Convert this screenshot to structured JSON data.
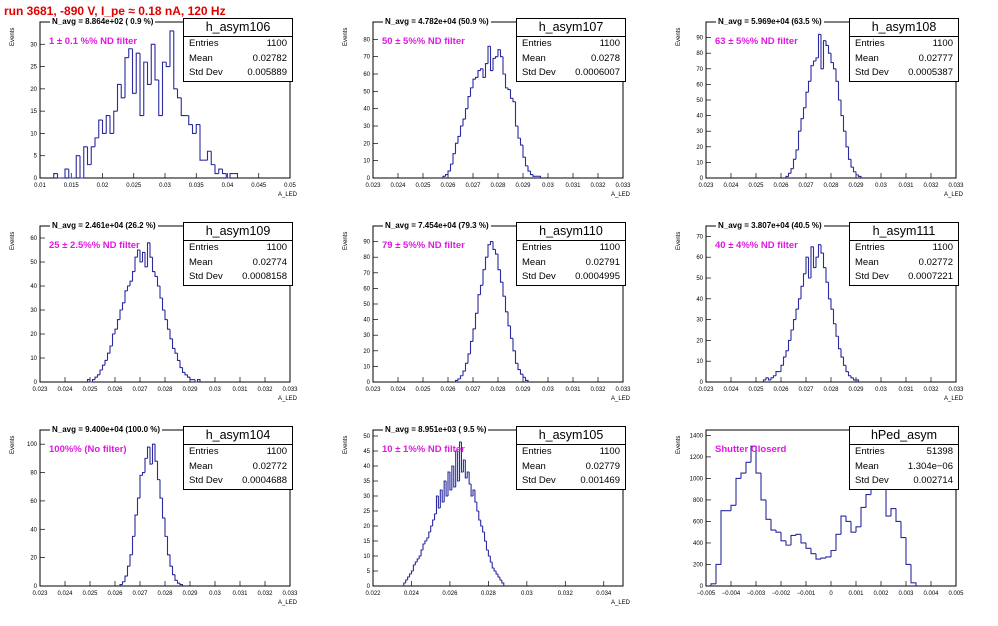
{
  "title": "run 3681,  -890 V, I_pe ≈ 0.18 nA, 120 Hz",
  "chart_data": [
    {
      "type": "histogram",
      "name": "h_asym106",
      "entries": "1100",
      "mean": "0.02782",
      "std_dev": "0.005889",
      "n_avg": "N_avg = 8.864e+02 ( 0.9 %)",
      "filter_label": "1 ± 0.1 %% ND filter",
      "xlabel": "A_LED",
      "ylabel": "Events",
      "xlim": [
        0.01,
        0.05
      ],
      "ylim": [
        0,
        35
      ],
      "xticks": [
        "0.01",
        "0.015",
        "0.02",
        "0.025",
        "0.03",
        "0.035",
        "0.04",
        "0.045",
        "0.05"
      ],
      "yticks": [
        "0",
        "5",
        "10",
        "15",
        "20",
        "25",
        "30"
      ],
      "x_start": 0.0122,
      "bin_width": 0.0006,
      "counts": [
        1,
        0,
        0,
        2,
        0,
        0,
        5,
        0,
        7,
        3,
        7,
        9,
        13,
        10,
        14,
        10,
        15,
        21,
        18,
        27,
        29,
        19,
        28,
        14,
        26,
        21,
        30,
        22,
        14,
        26,
        25,
        33,
        20,
        18,
        14,
        14,
        12,
        10,
        12,
        4,
        4,
        6,
        3,
        1,
        2,
        1,
        0,
        1,
        1
      ]
    },
    {
      "type": "histogram",
      "name": "h_asym107",
      "entries": "1100",
      "mean": "0.0278",
      "std_dev": "0.0006007",
      "n_avg": "N_avg = 4.782e+04 (50.9 %)",
      "filter_label": "50 ± 5%% ND filter",
      "xlabel": "A_LED",
      "ylabel": "Events",
      "xlim": [
        0.023,
        0.033
      ],
      "ylim": [
        0,
        90
      ],
      "xticks": [
        "0.023",
        "0.024",
        "0.025",
        "0.026",
        "0.027",
        "0.028",
        "0.029",
        "0.03",
        "0.031",
        "0.032",
        "0.033"
      ],
      "yticks": [
        "0",
        "10",
        "20",
        "30",
        "40",
        "50",
        "60",
        "70",
        "80"
      ],
      "x_start": 0.0258,
      "bin_width": 0.0001,
      "counts": [
        1,
        2,
        4,
        8,
        14,
        20,
        24,
        30,
        34,
        40,
        47,
        52,
        57,
        58,
        62,
        63,
        58,
        66,
        76,
        62,
        69,
        70,
        74,
        70,
        60,
        52,
        51,
        46,
        44,
        30,
        23,
        19,
        12,
        7,
        4,
        2,
        1,
        1,
        1
      ]
    },
    {
      "type": "histogram",
      "name": "h_asym108",
      "entries": "1100",
      "mean": "0.02777",
      "std_dev": "0.0005387",
      "n_avg": "N_avg = 5.969e+04 (63.5 %)",
      "filter_label": "63 ± 5%% ND filter",
      "xlabel": "A_LED",
      "ylabel": "Events",
      "xlim": [
        0.023,
        0.033
      ],
      "ylim": [
        0,
        100
      ],
      "xticks": [
        "0.023",
        "0.024",
        "0.025",
        "0.026",
        "0.027",
        "0.028",
        "0.029",
        "0.03",
        "0.031",
        "0.032",
        "0.033"
      ],
      "yticks": [
        "0",
        "10",
        "20",
        "30",
        "40",
        "50",
        "60",
        "70",
        "80",
        "90"
      ],
      "x_start": 0.0262,
      "bin_width": 0.0001,
      "counts": [
        1,
        3,
        6,
        12,
        18,
        30,
        38,
        45,
        55,
        62,
        72,
        75,
        77,
        92,
        70,
        88,
        85,
        80,
        74,
        70,
        62,
        50,
        40,
        30,
        20,
        12,
        7,
        4,
        2,
        1
      ]
    },
    {
      "type": "histogram",
      "name": "h_asym109",
      "entries": "1100",
      "mean": "0.02774",
      "std_dev": "0.0008158",
      "n_avg": "N_avg = 2.461e+04 (26.2 %)",
      "filter_label": "25 ± 2.5%% ND filter",
      "xlabel": "A_LED",
      "ylabel": "Events",
      "xlim": [
        0.023,
        0.033
      ],
      "ylim": [
        0,
        65
      ],
      "xticks": [
        "0.023",
        "0.024",
        "0.025",
        "0.026",
        "0.027",
        "0.028",
        "0.029",
        "0.03",
        "0.031",
        "0.032",
        "0.033"
      ],
      "yticks": [
        "0",
        "10",
        "20",
        "30",
        "40",
        "50",
        "60"
      ],
      "x_start": 0.0249,
      "bin_width": 0.0001,
      "counts": [
        1,
        0,
        1,
        2,
        3,
        5,
        7,
        9,
        12,
        15,
        20,
        22,
        26,
        30,
        33,
        38,
        40,
        42,
        46,
        52,
        55,
        50,
        54,
        48,
        58,
        52,
        46,
        44,
        40,
        35,
        30,
        26,
        22,
        18,
        14,
        12,
        9,
        6,
        4,
        3,
        2,
        1,
        1,
        0,
        1
      ]
    },
    {
      "type": "histogram",
      "name": "h_asym110",
      "entries": "1100",
      "mean": "0.02791",
      "std_dev": "0.0004995",
      "n_avg": "N_avg = 7.454e+04 (79.3 %)",
      "filter_label": "79 ± 5%% ND filter",
      "xlabel": "A_LED",
      "ylabel": "Events",
      "xlim": [
        0.023,
        0.033
      ],
      "ylim": [
        0,
        100
      ],
      "xticks": [
        "0.023",
        "0.024",
        "0.025",
        "0.026",
        "0.027",
        "0.028",
        "0.029",
        "0.03",
        "0.031",
        "0.032",
        "0.033"
      ],
      "yticks": [
        "0",
        "10",
        "20",
        "30",
        "40",
        "50",
        "60",
        "70",
        "80",
        "90"
      ],
      "x_start": 0.0263,
      "bin_width": 0.0001,
      "counts": [
        1,
        2,
        4,
        7,
        12,
        18,
        26,
        34,
        44,
        56,
        62,
        72,
        80,
        88,
        90,
        85,
        82,
        72,
        64,
        55,
        45,
        36,
        28,
        20,
        12,
        8,
        5,
        3,
        1
      ]
    },
    {
      "type": "histogram",
      "name": "h_asym111",
      "entries": "1100",
      "mean": "0.02772",
      "std_dev": "0.0007221",
      "n_avg": "N_avg = 3.807e+04 (40.5 %)",
      "filter_label": "40 ± 4%% ND filter",
      "xlabel": "A_LED",
      "ylabel": "Events",
      "xlim": [
        0.023,
        0.033
      ],
      "ylim": [
        0,
        75
      ],
      "xticks": [
        "0.023",
        "0.024",
        "0.025",
        "0.026",
        "0.027",
        "0.028",
        "0.029",
        "0.03",
        "0.031",
        "0.032",
        "0.033"
      ],
      "yticks": [
        "0",
        "10",
        "20",
        "30",
        "40",
        "50",
        "60",
        "70"
      ],
      "x_start": 0.0253,
      "bin_width": 0.0001,
      "counts": [
        1,
        2,
        1,
        2,
        3,
        5,
        5,
        8,
        12,
        15,
        20,
        25,
        30,
        35,
        40,
        46,
        52,
        60,
        50,
        65,
        55,
        60,
        66,
        62,
        55,
        48,
        40,
        35,
        28,
        22,
        16,
        12,
        8,
        5,
        3,
        2,
        1,
        1
      ]
    },
    {
      "type": "histogram",
      "name": "h_asym104",
      "entries": "1100",
      "mean": "0.02772",
      "std_dev": "0.0004688",
      "n_avg": "N_avg = 9.400e+04 (100.0 %)",
      "filter_label": "100%% (No filter)",
      "xlabel": "A_LED",
      "ylabel": "Events",
      "xlim": [
        0.023,
        0.033
      ],
      "ylim": [
        0,
        110
      ],
      "xticks": [
        "0.023",
        "0.024",
        "0.025",
        "0.026",
        "0.027",
        "0.028",
        "0.029",
        "0.03",
        "0.031",
        "0.032",
        "0.033"
      ],
      "yticks": [
        "0",
        "20",
        "40",
        "60",
        "80",
        "100"
      ],
      "x_start": 0.0262,
      "bin_width": 0.0001,
      "counts": [
        1,
        3,
        7,
        14,
        22,
        35,
        50,
        62,
        78,
        80,
        90,
        98,
        86,
        100,
        88,
        75,
        62,
        48,
        35,
        22,
        14,
        8,
        4,
        2,
        1
      ]
    },
    {
      "type": "histogram",
      "name": "h_asym105",
      "entries": "1100",
      "mean": "0.02779",
      "std_dev": "0.001469",
      "n_avg": "N_avg = 8.951e+03 ( 9.5 %)",
      "filter_label": "10 ± 1%% ND filter",
      "xlabel": "A_LED",
      "ylabel": "Events",
      "xlim": [
        0.022,
        0.035
      ],
      "ylim": [
        0,
        52
      ],
      "xticks": [
        "0.022",
        "0.024",
        "0.026",
        "0.028",
        "0.03",
        "0.032",
        "0.034"
      ],
      "yticks": [
        "0",
        "5",
        "10",
        "15",
        "20",
        "25",
        "30",
        "35",
        "40",
        "45",
        "50"
      ],
      "x_start": 0.0236,
      "bin_width": 0.0001,
      "counts": [
        1,
        2,
        3,
        4,
        5,
        7,
        8,
        9,
        10,
        12,
        14,
        15,
        16,
        18,
        20,
        22,
        24,
        30,
        26,
        32,
        28,
        35,
        30,
        38,
        32,
        40,
        33,
        45,
        35,
        48,
        38,
        42,
        36,
        38,
        34,
        30,
        32,
        28,
        25,
        22,
        20,
        18,
        15,
        12,
        10,
        8,
        6,
        5,
        4,
        3,
        2,
        1
      ]
    },
    {
      "type": "histogram",
      "name": "hPed_asym",
      "entries": "51398",
      "mean": "1.304e−06",
      "std_dev": "0.002714",
      "n_avg": "",
      "filter_label": "Shutter Closerd",
      "xlabel": "",
      "ylabel": "Events",
      "xlim": [
        -0.005,
        0.005
      ],
      "ylim": [
        0,
        1450
      ],
      "xticks": [
        "−0.005",
        "−0.004",
        "−0.003",
        "−0.002",
        "−0.001",
        "0",
        "0.001",
        "0.002",
        "0.003",
        "0.004",
        "0.005"
      ],
      "yticks": [
        "0",
        "200",
        "400",
        "600",
        "800",
        "1000",
        "1200",
        "1400"
      ],
      "x_start": -0.0048,
      "bin_width": 0.0002,
      "counts": [
        20,
        200,
        700,
        700,
        750,
        1000,
        1050,
        1150,
        1300,
        1050,
        800,
        620,
        520,
        500,
        420,
        380,
        470,
        480,
        400,
        350,
        300,
        250,
        260,
        270,
        330,
        480,
        650,
        600,
        500,
        550,
        730,
        850,
        900,
        1000,
        900,
        650,
        720,
        600,
        450,
        200,
        30
      ]
    }
  ]
}
